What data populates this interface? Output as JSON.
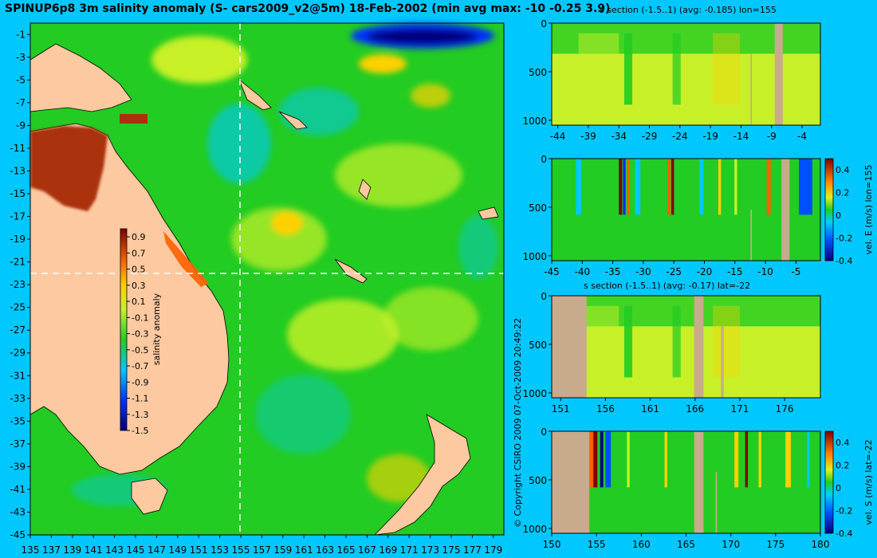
{
  "title": "SPINUP6p8 3m salinity anomaly (S- cars2009_v2@5m) 18-Feb-2002 (min avg max: -10 -0.25 3.9)",
  "copyright": "© Copyright CSIRO 2009   07-Oct-2009 20:49:22",
  "colors": {
    "background": "#00c8ff",
    "land": "#fcc9a0",
    "section_land": "#c8aa8c",
    "ocean": "#22cc22"
  },
  "chart_data": [
    {
      "type": "heatmap",
      "name": "map",
      "title": "SPINUP6p8 3m salinity anomaly (S- cars2009_v2@5m) 18-Feb-2002 (min avg max: -10 -0.25 3.9)",
      "xlim": [
        135,
        180
      ],
      "ylim": [
        -45,
        0
      ],
      "xticks": [
        "135",
        "137",
        "139",
        "141",
        "143",
        "145",
        "147",
        "149",
        "151",
        "153",
        "155",
        "157",
        "159",
        "161",
        "163",
        "165",
        "167",
        "169",
        "171",
        "173",
        "175",
        "177",
        "179"
      ],
      "yticks": [
        "-1",
        "-3",
        "-5",
        "-7",
        "-9",
        "-11",
        "-13",
        "-15",
        "-17",
        "-19",
        "-21",
        "-23",
        "-25",
        "-27",
        "-29",
        "-31",
        "-33",
        "-35",
        "-37",
        "-39",
        "-41",
        "-43",
        "-45"
      ],
      "section_lon": 155,
      "section_lat": -22,
      "colorbar": {
        "label": "salinity anomaly",
        "ticks": [
          "0.9",
          "0.7",
          "0.5",
          "0.3",
          "0.1",
          "-0.1",
          "-0.3",
          "-0.5",
          "-0.7",
          "-0.9",
          "-1.1",
          "-1.3",
          "-1.5"
        ],
        "range": [
          -1.5,
          1.0
        ]
      }
    },
    {
      "type": "heatmap",
      "name": "section-1",
      "title": "s section (-1.5..1) (avg: -0.185) lon=155",
      "xticks": [
        "-44",
        "-39",
        "-34",
        "-29",
        "-24",
        "-19",
        "-14",
        "-9",
        "-4"
      ],
      "yticks": [
        "0",
        "500",
        "1000"
      ],
      "xlim": [
        -45,
        -1
      ],
      "ylim": [
        1050,
        0
      ]
    },
    {
      "type": "heatmap",
      "name": "section-2",
      "title": "",
      "xticks": [
        "-45",
        "-40",
        "-35",
        "-30",
        "-25",
        "-20",
        "-15",
        "-10",
        "-5"
      ],
      "yticks": [
        "0",
        "500",
        "1000"
      ],
      "xlim": [
        -45,
        -1
      ],
      "ylim": [
        1050,
        0
      ],
      "colorbar": {
        "label": "vel. E (m/s) lon=155",
        "ticks": [
          "0.4",
          "0.2",
          "0",
          "-0.2",
          "-0.4"
        ],
        "range": [
          -0.4,
          0.5
        ]
      }
    },
    {
      "type": "heatmap",
      "name": "section-3",
      "title": "s section (-1.5..1) (avg: -0.17) lat=-22",
      "xticks": [
        "151",
        "156",
        "161",
        "166",
        "171",
        "176"
      ],
      "yticks": [
        "0",
        "500",
        "1000"
      ],
      "xlim": [
        150,
        180
      ],
      "ylim": [
        1050,
        0
      ]
    },
    {
      "type": "heatmap",
      "name": "section-4",
      "title": "",
      "xticks": [
        "150",
        "155",
        "160",
        "165",
        "170",
        "175",
        "180"
      ],
      "yticks": [
        "0",
        "500",
        "1000"
      ],
      "xlim": [
        150,
        180
      ],
      "ylim": [
        1050,
        0
      ],
      "colorbar": {
        "label": "vel. S (m/s) lat=-22",
        "ticks": [
          "0.4",
          "0.2",
          "0",
          "-0.2",
          "-0.4"
        ],
        "range": [
          -0.4,
          0.5
        ]
      }
    }
  ]
}
